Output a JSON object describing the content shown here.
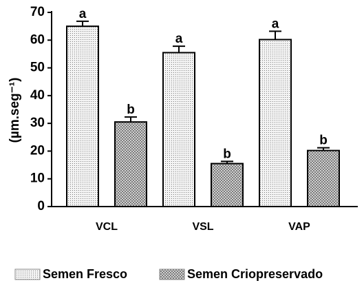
{
  "chart_data": {
    "type": "bar",
    "y_label": "(µm.seg⁻¹)",
    "categories": [
      "VCL",
      "VSL",
      "VAP"
    ],
    "series": [
      {
        "name": "Semen Fresco",
        "color": "#f2f2f2",
        "pattern": "dots",
        "values": [
          65,
          55.5,
          60.2
        ],
        "errors": [
          1.8,
          2.3,
          3
        ],
        "annotations": [
          "a",
          "a",
          "a"
        ]
      },
      {
        "name": "Semen Criopreservado",
        "color": "#d9d9d9",
        "pattern": "crosshatch",
        "values": [
          30.5,
          15.5,
          20.2
        ],
        "errors": [
          1.8,
          0.8,
          1
        ],
        "annotations": [
          "b",
          "b",
          "b"
        ]
      }
    ],
    "ylim": [
      0,
      70
    ],
    "yticks": [
      0,
      10,
      20,
      30,
      40,
      50,
      60,
      70
    ],
    "legend": "bottom"
  }
}
